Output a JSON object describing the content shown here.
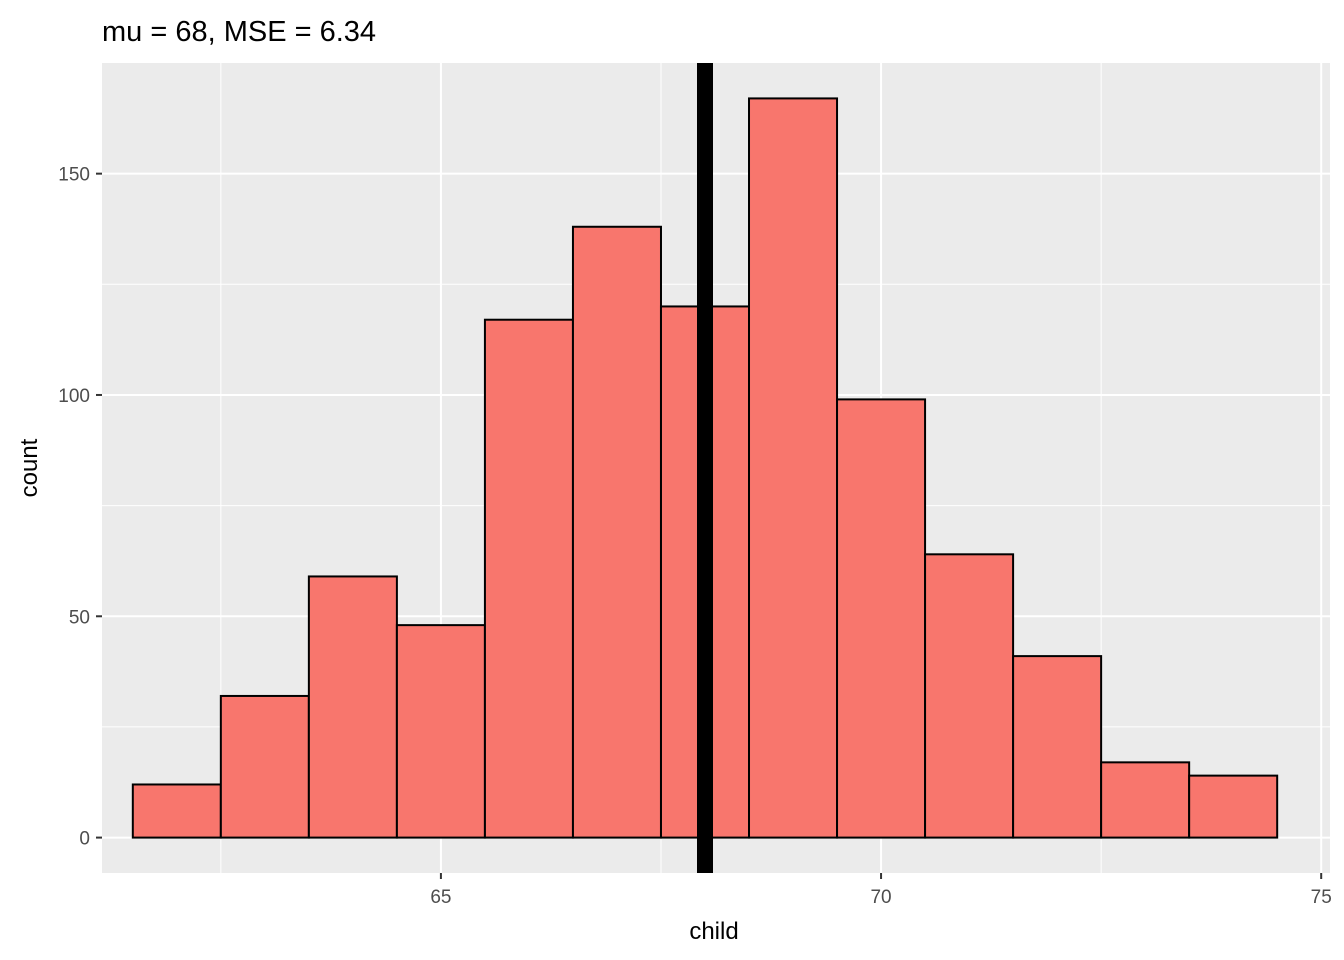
{
  "chart_data": {
    "type": "bar",
    "title": "mu = 68, MSE = 6.34",
    "xlabel": "child",
    "ylabel": "count",
    "bin_width": 1,
    "bin_centers": [
      62,
      63,
      64,
      65,
      66,
      67,
      68,
      69,
      70,
      71,
      72,
      73,
      74
    ],
    "values": [
      12,
      32,
      59,
      48,
      117,
      138,
      120,
      167,
      99,
      64,
      41,
      17,
      14
    ],
    "xlim": [
      61.15,
      75.1
    ],
    "ylim": [
      -8,
      175
    ],
    "x_ticks": [
      65,
      70,
      75
    ],
    "y_ticks": [
      0,
      50,
      100,
      150
    ],
    "vline": {
      "x": 68,
      "color": "#000000"
    },
    "grid": true,
    "colors": {
      "panel": "#ebebeb",
      "grid_major": "#ffffff",
      "bar_fill": "#f8766d",
      "bar_edge": "#000000"
    }
  }
}
